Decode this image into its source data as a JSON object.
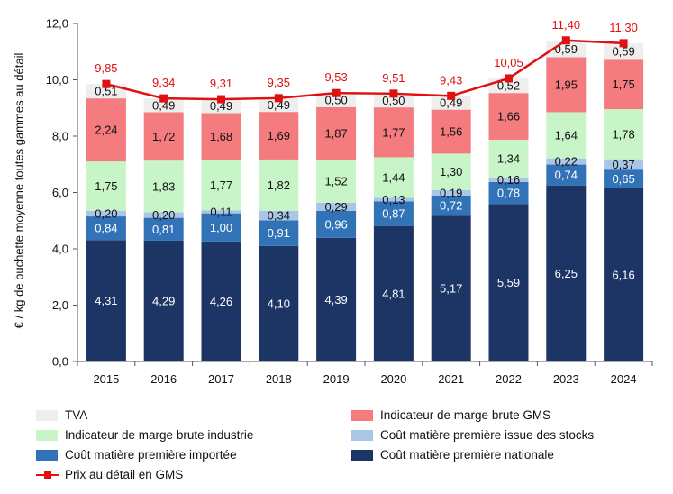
{
  "chart_data": {
    "type": "stacked-bar-with-line",
    "ylabel": "€ / kg de buchette moyenne toutes gammes au détail",
    "ylim": [
      0,
      12
    ],
    "yticks": [
      "0,0",
      "2,0",
      "4,0",
      "6,0",
      "8,0",
      "10,0",
      "12,0"
    ],
    "categories": [
      "2015",
      "2016",
      "2017",
      "2018",
      "2019",
      "2020",
      "2021",
      "2022",
      "2023",
      "2024"
    ],
    "stack_series": [
      {
        "name": "Coût matière première nationale",
        "color": "#1d3564",
        "label_color": "#ffffff",
        "values": [
          4.31,
          4.29,
          4.26,
          4.1,
          4.39,
          4.81,
          5.17,
          5.59,
          6.25,
          6.16
        ],
        "labels": [
          "4,31",
          "4,29",
          "4,26",
          "4,10",
          "4,39",
          "4,81",
          "5,17",
          "5,59",
          "6,25",
          "6,16"
        ]
      },
      {
        "name": "Coût matière première importée",
        "color": "#3273b8",
        "label_color": "#ffffff",
        "values": [
          0.84,
          0.81,
          1.0,
          0.91,
          0.96,
          0.87,
          0.72,
          0.78,
          0.74,
          0.65
        ],
        "labels": [
          "0,84",
          "0,81",
          "1,00",
          "0,91",
          "0,96",
          "0,87",
          "0,72",
          "0,78",
          "0,74",
          "0,65"
        ]
      },
      {
        "name": "Coût matière première issue des stocks",
        "color": "#a9c6e6",
        "label_color": "#111111",
        "values": [
          0.2,
          0.2,
          0.11,
          0.34,
          0.29,
          0.13,
          0.19,
          0.16,
          0.22,
          0.37
        ],
        "labels": [
          "0,20",
          "0,20",
          "0,11",
          "0,34",
          "0,29",
          "0,13",
          "0,19",
          "0,16",
          "0,22",
          "0,37"
        ]
      },
      {
        "name": "Indicateur de marge brute industrie",
        "color": "#c8f5c8",
        "label_color": "#111111",
        "values": [
          1.75,
          1.83,
          1.77,
          1.82,
          1.52,
          1.44,
          1.3,
          1.34,
          1.64,
          1.78
        ],
        "labels": [
          "1,75",
          "1,83",
          "1,77",
          "1,82",
          "1,52",
          "1,44",
          "1,30",
          "1,34",
          "1,64",
          "1,78"
        ]
      },
      {
        "name": "Indicateur de marge brute GMS",
        "color": "#f47c7f",
        "label_color": "#111111",
        "values": [
          2.24,
          1.72,
          1.68,
          1.69,
          1.87,
          1.77,
          1.56,
          1.66,
          1.95,
          1.75
        ],
        "labels": [
          "2,24",
          "1,72",
          "1,68",
          "1,69",
          "1,87",
          "1,77",
          "1,56",
          "1,66",
          "1,95",
          "1,75"
        ]
      },
      {
        "name": "TVA",
        "color": "#eeeeee",
        "label_color": "#111111",
        "values": [
          0.51,
          0.49,
          0.49,
          0.49,
          0.5,
          0.5,
          0.49,
          0.52,
          0.59,
          0.59
        ],
        "labels": [
          "0,51",
          "0,49",
          "0,49",
          "0,49",
          "0,50",
          "0,50",
          "0,49",
          "0,52",
          "0,59",
          "0,59"
        ]
      }
    ],
    "line_series": {
      "name": "Prix au détail en GMS",
      "color": "#e01010",
      "values": [
        9.85,
        9.34,
        9.31,
        9.35,
        9.53,
        9.51,
        9.43,
        10.05,
        11.4,
        11.3
      ],
      "labels": [
        "9,85",
        "9,34",
        "9,31",
        "9,35",
        "9,53",
        "9,51",
        "9,43",
        "10,05",
        "11,40",
        "11,30"
      ]
    },
    "grid": false,
    "legend_position": "bottom"
  },
  "legend": {
    "tva": "TVA",
    "gms_margin": "Indicateur de marge brute GMS",
    "industry_margin": "Indicateur de marge brute industrie",
    "stock_cost": "Coût matière première issue des stocks",
    "import_cost": "Coût matière première importée",
    "national_cost": "Coût matière première nationale",
    "retail_price": "Prix au détail en GMS"
  }
}
